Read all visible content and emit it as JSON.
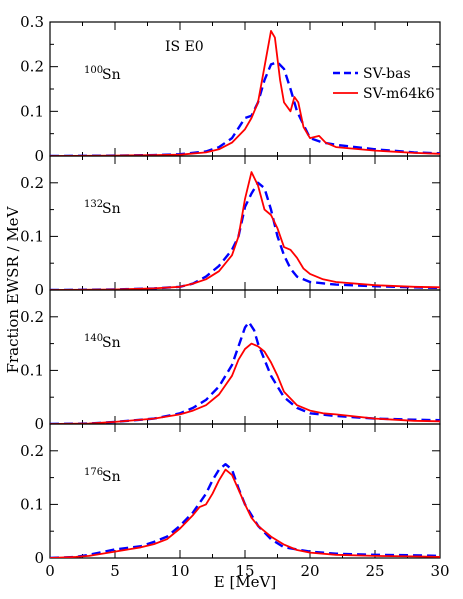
{
  "chart_data": {
    "type": "line",
    "xlabel": "E [MeV]",
    "ylabel": "Fraction EWSR / MeV",
    "xlim": [
      0,
      30
    ],
    "x_ticks": [
      "0",
      "5",
      "10",
      "15",
      "20",
      "25",
      "30"
    ],
    "annotation": "IS E0",
    "legend": {
      "placement": "top-right of first panel",
      "entries": [
        {
          "name": "SV-bas",
          "color": "#0000ff",
          "style": "dashed"
        },
        {
          "name": "SV-m64k6",
          "color": "#ff0000",
          "style": "solid"
        }
      ]
    },
    "panels": [
      {
        "label_mass": "100",
        "label_element": "Sn",
        "ylim": [
          0,
          0.3
        ],
        "y_ticks": [
          "0",
          "0.1",
          "0.2",
          "0.3"
        ],
        "series": [
          {
            "name": "SV-bas",
            "color": "#0000ff",
            "style": "dashed",
            "x": [
              0,
              5,
              8,
              10,
              12,
              13,
              14,
              15,
              15.5,
              16,
              16.5,
              17,
              17.5,
              18,
              18.5,
              19,
              19.5,
              20,
              21,
              22,
              25,
              28,
              30
            ],
            "y": [
              0,
              0.001,
              0.002,
              0.004,
              0.01,
              0.02,
              0.04,
              0.085,
              0.09,
              0.12,
              0.17,
              0.205,
              0.21,
              0.195,
              0.15,
              0.1,
              0.07,
              0.04,
              0.03,
              0.025,
              0.015,
              0.008,
              0.006
            ]
          },
          {
            "name": "SV-m64k6",
            "color": "#ff0000",
            "style": "solid",
            "x": [
              0,
              5,
              8,
              10,
              12,
              13,
              14,
              15,
              15.5,
              16,
              16.5,
              17,
              17.3,
              17.7,
              18,
              18.5,
              18.8,
              19.1,
              19.5,
              20,
              20.7,
              21.2,
              22,
              25,
              28,
              30
            ],
            "y": [
              0,
              0.001,
              0.002,
              0.003,
              0.008,
              0.015,
              0.03,
              0.06,
              0.085,
              0.12,
              0.2,
              0.28,
              0.265,
              0.17,
              0.12,
              0.1,
              0.132,
              0.12,
              0.065,
              0.04,
              0.045,
              0.03,
              0.02,
              0.012,
              0.007,
              0.005
            ]
          }
        ]
      },
      {
        "label_mass": "132",
        "label_element": "Sn",
        "ylim": [
          0,
          0.25
        ],
        "y_ticks": [
          "0",
          "0.1",
          "0.2"
        ],
        "series": [
          {
            "name": "SV-bas",
            "color": "#0000ff",
            "style": "dashed",
            "x": [
              0,
              5,
              8,
              10,
              11,
              12,
              13,
              14,
              14.5,
              15,
              15.5,
              16,
              16.5,
              17,
              17.5,
              18,
              18.5,
              19,
              20,
              22,
              25,
              28,
              30
            ],
            "y": [
              0,
              0.001,
              0.003,
              0.006,
              0.012,
              0.025,
              0.045,
              0.075,
              0.1,
              0.155,
              0.18,
              0.2,
              0.19,
              0.15,
              0.1,
              0.065,
              0.04,
              0.025,
              0.015,
              0.01,
              0.007,
              0.005,
              0.004
            ]
          },
          {
            "name": "SV-m64k6",
            "color": "#ff0000",
            "style": "solid",
            "x": [
              0,
              5,
              8,
              10,
              11,
              12,
              13,
              14,
              14.5,
              15,
              15.5,
              16,
              16.5,
              17,
              17.5,
              18,
              18.5,
              19,
              19.5,
              20,
              21,
              22,
              25,
              28,
              30
            ],
            "y": [
              0,
              0.001,
              0.003,
              0.006,
              0.012,
              0.02,
              0.035,
              0.065,
              0.1,
              0.17,
              0.22,
              0.195,
              0.15,
              0.14,
              0.115,
              0.08,
              0.075,
              0.06,
              0.04,
              0.03,
              0.02,
              0.015,
              0.009,
              0.006,
              0.005
            ]
          }
        ]
      },
      {
        "label_mass": "140",
        "label_element": "Sn",
        "ylim": [
          0,
          0.25
        ],
        "y_ticks": [
          "0",
          "0.1",
          "0.2"
        ],
        "series": [
          {
            "name": "SV-bas",
            "color": "#0000ff",
            "style": "dashed",
            "x": [
              0,
              3,
              5,
              8,
              10,
              11,
              12,
              13,
              13.5,
              14,
              14.5,
              15,
              15.3,
              15.7,
              16,
              16.5,
              17,
              18,
              19,
              20,
              22,
              25,
              28,
              30
            ],
            "y": [
              0,
              0.001,
              0.004,
              0.01,
              0.02,
              0.03,
              0.045,
              0.07,
              0.09,
              0.11,
              0.145,
              0.18,
              0.19,
              0.175,
              0.15,
              0.12,
              0.09,
              0.05,
              0.03,
              0.02,
              0.015,
              0.01,
              0.008,
              0.007
            ]
          },
          {
            "name": "SV-m64k6",
            "color": "#ff0000",
            "style": "solid",
            "x": [
              0,
              3,
              5,
              8,
              10,
              11,
              12,
              13,
              14,
              14.5,
              15,
              15.5,
              16,
              16.5,
              17,
              17.5,
              18,
              19,
              20,
              21,
              22,
              25,
              28,
              30
            ],
            "y": [
              0,
              0.001,
              0.004,
              0.01,
              0.018,
              0.025,
              0.035,
              0.055,
              0.09,
              0.12,
              0.14,
              0.15,
              0.145,
              0.135,
              0.115,
              0.09,
              0.06,
              0.035,
              0.025,
              0.02,
              0.018,
              0.01,
              0.006,
              0.005
            ]
          }
        ]
      },
      {
        "label_mass": "176",
        "label_element": "Sn",
        "ylim": [
          0,
          0.25
        ],
        "y_ticks": [
          "0",
          "0.1",
          "0.2"
        ],
        "series": [
          {
            "name": "SV-bas",
            "color": "#0000ff",
            "style": "dashed",
            "x": [
              0,
              2,
              3,
              5,
              7,
              8,
              9,
              10,
              11,
              12,
              12.5,
              13,
              13.5,
              14,
              14.5,
              15,
              16,
              17,
              18,
              20,
              22,
              25,
              28,
              30
            ],
            "y": [
              0,
              0.002,
              0.006,
              0.016,
              0.022,
              0.03,
              0.04,
              0.06,
              0.085,
              0.12,
              0.145,
              0.165,
              0.175,
              0.165,
              0.13,
              0.1,
              0.06,
              0.035,
              0.02,
              0.012,
              0.008,
              0.006,
              0.005,
              0.004
            ]
          },
          {
            "name": "SV-m64k6",
            "color": "#ff0000",
            "style": "solid",
            "x": [
              0,
              2,
              3,
              5,
              7,
              8,
              9,
              10,
              11,
              11.5,
              12,
              12.5,
              13,
              13.5,
              14,
              15,
              15.5,
              16,
              17,
              18,
              19,
              20,
              22,
              25,
              28,
              30
            ],
            "y": [
              0,
              0.002,
              0.004,
              0.012,
              0.02,
              0.026,
              0.035,
              0.055,
              0.08,
              0.095,
              0.1,
              0.12,
              0.145,
              0.165,
              0.155,
              0.1,
              0.075,
              0.06,
              0.04,
              0.025,
              0.015,
              0.01,
              0.006,
              0.004,
              0.003,
              0.002
            ]
          }
        ]
      }
    ]
  }
}
